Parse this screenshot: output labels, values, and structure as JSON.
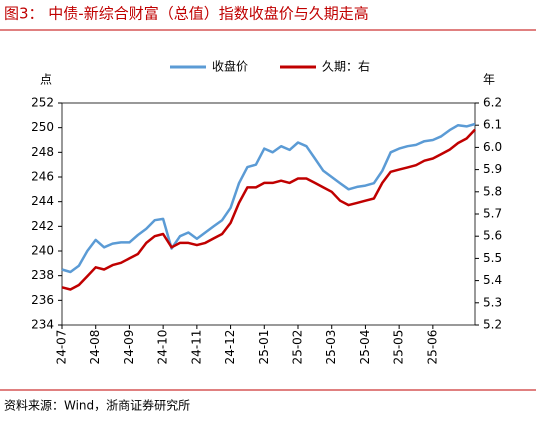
{
  "chart_data": {
    "type": "line",
    "title": "图3：  中债-新综合财富（总值）指数收盘价与久期走高",
    "y_axis_label": "点",
    "y2_axis_label": "年",
    "source": "资料来源：Wind，浙商证券研究所",
    "categories": [
      "24-07",
      null,
      null,
      null,
      "24-08",
      null,
      null,
      null,
      "24-09",
      null,
      null,
      null,
      "24-10",
      null,
      null,
      null,
      "24-11",
      null,
      null,
      null,
      "24-12",
      null,
      null,
      null,
      "25-01",
      null,
      null,
      null,
      "25-02",
      null,
      null,
      null,
      "25-03",
      null,
      null,
      null,
      "25-04",
      null,
      null,
      null,
      "25-05",
      null,
      null,
      null,
      "25-06",
      null,
      null,
      null,
      null,
      null
    ],
    "ylim": [
      234,
      252
    ],
    "yticks": [
      234,
      236,
      238,
      240,
      242,
      244,
      246,
      248,
      250,
      252
    ],
    "y2lim": [
      5.2,
      6.2
    ],
    "y2ticks": [
      5.2,
      5.3,
      5.4,
      5.5,
      5.6,
      5.7,
      5.8,
      5.9,
      {
        "value": 6,
        "label": "6.0"
      },
      6.1,
      6.2
    ],
    "legend": "top",
    "series": [
      {
        "name": "收盘价",
        "color": "#5b9bd5",
        "values": [
          238.5,
          238.3,
          238.8,
          240.0,
          240.9,
          240.3,
          240.6,
          240.7,
          240.7,
          241.3,
          241.8,
          242.5,
          242.6,
          240.2,
          241.2,
          241.5,
          241.0,
          241.5,
          242.0,
          242.5,
          243.5,
          245.5,
          246.8,
          247.0,
          248.3,
          248.0,
          248.5,
          248.2,
          248.8,
          248.5,
          247.5,
          246.5,
          246.0,
          245.5,
          245.0,
          245.2,
          245.3,
          245.5,
          246.5,
          248.0,
          248.3,
          248.5,
          248.6,
          248.9,
          249.0,
          249.3,
          249.8,
          250.2,
          250.1,
          250.3
        ]
      },
      {
        "name": "久期：右",
        "color": "#c00000",
        "axis": "y2",
        "values": [
          5.37,
          5.36,
          5.38,
          5.42,
          5.46,
          5.45,
          5.47,
          5.48,
          5.5,
          5.52,
          5.57,
          5.6,
          5.61,
          5.55,
          5.57,
          5.57,
          5.56,
          5.57,
          5.59,
          5.61,
          5.66,
          5.75,
          5.82,
          5.82,
          5.84,
          5.84,
          5.85,
          5.84,
          5.86,
          5.86,
          5.84,
          5.82,
          5.8,
          5.76,
          5.74,
          5.75,
          5.76,
          5.77,
          5.84,
          5.89,
          5.9,
          5.91,
          5.92,
          5.94,
          5.95,
          5.97,
          5.99,
          6.02,
          6.04,
          6.08
        ]
      }
    ]
  }
}
